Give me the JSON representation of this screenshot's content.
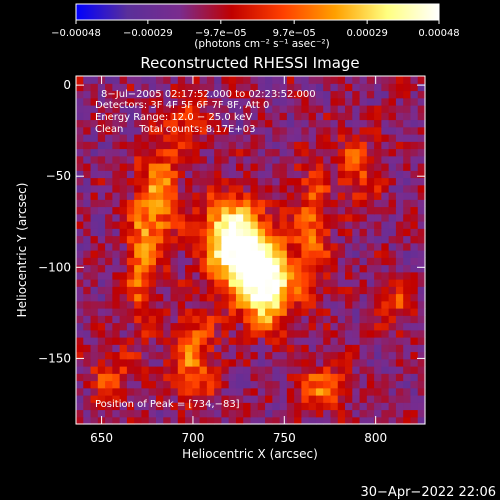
{
  "chart_data": {
    "type": "heatmap",
    "title": "Reconstructed RHESSI Image",
    "xlabel": "Heliocentric X (arcsec)",
    "ylabel": "Heliocentric Y (arcsec)",
    "xlim": [
      636,
      827
    ],
    "ylim": [
      -186,
      5
    ],
    "x_ticks": [
      650,
      700,
      750,
      800
    ],
    "x_tick_labels": [
      "650",
      "700",
      "750",
      "800"
    ],
    "y_ticks": [
      0,
      -50,
      -100,
      -150
    ],
    "y_tick_labels": [
      "0",
      "−50",
      "−100",
      "−150"
    ],
    "colorbar": {
      "range": [
        -0.00048,
        0.00048
      ],
      "ticks": [
        -0.00048,
        -0.00029,
        -9.7e-05,
        9.7e-05,
        0.00029,
        0.00048
      ],
      "tick_labels": [
        "−0.00048",
        "−0.00029",
        "−9.7e−05",
        "9.7e−05",
        "0.00029",
        "0.00048"
      ],
      "units_label": "(photons cm⁻² s⁻¹ asec⁻²)",
      "colors": [
        "#0000ff",
        "#5a2f9a",
        "#7a2c8e",
        "#c00000",
        "#ff4000",
        "#ffa000",
        "#ffff80",
        "#ffffff"
      ]
    },
    "annotations": [
      "8−Jul−2005 02:17:52.000 to 02:23:52.000",
      "Detectors: 3F 4F 5F 6F 7F 8F, Att 0",
      "Energy Range: 12.0 − 25.0 keV",
      "Clean     Total counts: 8.17E+03"
    ],
    "peak_label": "Position of Peak = [734,−83]",
    "peak": [
      734,
      -83
    ],
    "sources": [
      {
        "x": 730,
        "y": -95,
        "sx": 12,
        "sy": 18,
        "amp": 1.0
      },
      {
        "x": 742,
        "y": -112,
        "sx": 9,
        "sy": 14,
        "amp": 0.85
      },
      {
        "x": 718,
        "y": -80,
        "sx": 10,
        "sy": 14,
        "amp": 0.65
      },
      {
        "x": 683,
        "y": -60,
        "sx": 7,
        "sy": 22,
        "amp": 0.55
      },
      {
        "x": 672,
        "y": -95,
        "sx": 6,
        "sy": 28,
        "amp": 0.5
      },
      {
        "x": 700,
        "y": -150,
        "sx": 9,
        "sy": 18,
        "amp": 0.5
      },
      {
        "x": 770,
        "y": -165,
        "sx": 10,
        "sy": 9,
        "amp": 0.45
      },
      {
        "x": 765,
        "y": -80,
        "sx": 7,
        "sy": 25,
        "amp": 0.5
      },
      {
        "x": 790,
        "y": -45,
        "sx": 8,
        "sy": 14,
        "amp": 0.4
      },
      {
        "x": 698,
        "y": -20,
        "sx": 8,
        "sy": 10,
        "amp": 0.35
      },
      {
        "x": 655,
        "y": -160,
        "sx": 8,
        "sy": 10,
        "amp": 0.35
      },
      {
        "x": 812,
        "y": -120,
        "sx": 7,
        "sy": 10,
        "amp": 0.35
      }
    ]
  },
  "footer": {
    "timestamp": "30−Apr−2022 22:06"
  }
}
